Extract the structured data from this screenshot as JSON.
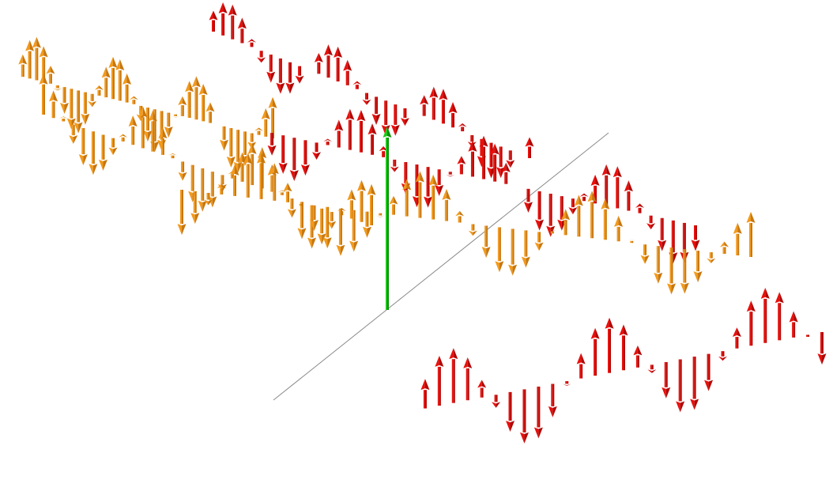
{
  "scene": {
    "description_type": "3d-vector-field-render",
    "background": "#ffffff",
    "colors": {
      "orange_fill": "#f29a1c",
      "orange_shade": "#c8770f",
      "red_fill": "#e8100c",
      "red_shade": "#b00806",
      "green_fill": "#1ec81a",
      "green_shade": "#0e8f0c",
      "axis_line": "#8a8a8a"
    },
    "icons": {
      "orange_arrow": "orange-arrow-icon",
      "red_arrow": "red-arrow-icon",
      "green_axis_arrow": "green-axis-arrow-icon"
    },
    "waves": [
      {
        "name": "orange-wave-back-left",
        "color": "orange",
        "arrow_count": 38,
        "cycles": 3.2
      },
      {
        "name": "orange-wave-mid-left",
        "color": "orange",
        "arrow_count": 34,
        "cycles": 3.0
      },
      {
        "name": "orange-wave-front",
        "color": "orange",
        "arrow_count": 44,
        "cycles": 3.4
      },
      {
        "name": "red-wave-back",
        "color": "red",
        "arrow_count": 34,
        "cycles": 3.0
      },
      {
        "name": "red-wave-mid",
        "color": "red",
        "arrow_count": 40,
        "cycles": 3.4
      },
      {
        "name": "red-wave-front",
        "color": "red",
        "arrow_count": 30,
        "cycles": 2.6
      }
    ]
  }
}
